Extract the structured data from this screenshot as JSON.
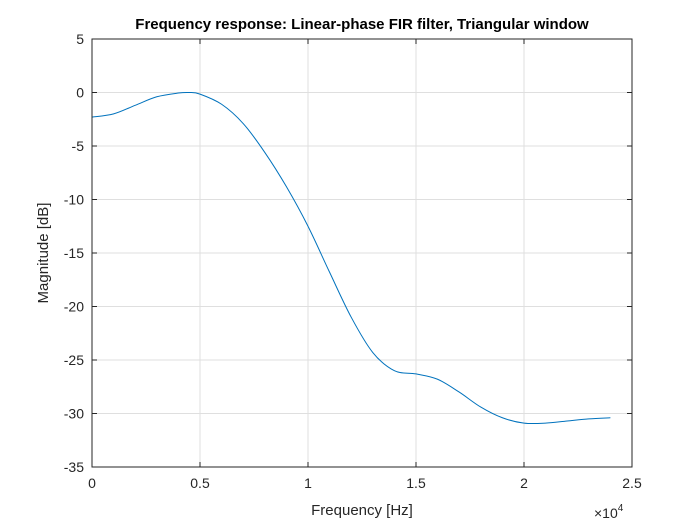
{
  "chart_data": {
    "type": "line",
    "title": "Frequency response: Linear-phase FIR filter, Triangular window",
    "xlabel": "Frequency [Hz]",
    "ylabel": "Magnitude [dB]",
    "xlim": [
      0,
      25000
    ],
    "ylim": [
      -35,
      5
    ],
    "x_tick_values": [
      0,
      5000,
      10000,
      15000,
      20000,
      25000
    ],
    "x_tick_labels": [
      "0",
      "0.5",
      "1",
      "1.5",
      "2",
      "2.5"
    ],
    "x_exponent_base": "×10",
    "x_exponent_power": "4",
    "y_tick_values": [
      5,
      0,
      -5,
      -10,
      -15,
      -20,
      -25,
      -30,
      -35
    ],
    "y_tick_labels": [
      "5",
      "0",
      "-5",
      "-10",
      "-15",
      "-20",
      "-25",
      "-30",
      "-35"
    ],
    "grid": true,
    "line_color": "#0072BD",
    "series": [
      {
        "x": [
          0,
          1000,
          2000,
          3000,
          4000,
          4500,
          5000,
          6000,
          7000,
          8000,
          9000,
          10000,
          11000,
          12000,
          13000,
          14000,
          15000,
          16000,
          17000,
          18000,
          19000,
          20000,
          21000,
          22000,
          23000,
          24000
        ],
        "y": [
          -2.3,
          -2.0,
          -1.2,
          -0.4,
          -0.05,
          0.0,
          -0.15,
          -1.1,
          -2.9,
          -5.6,
          -8.8,
          -12.5,
          -16.8,
          -21.0,
          -24.3,
          -26.0,
          -26.3,
          -26.8,
          -28.0,
          -29.4,
          -30.4,
          -30.9,
          -30.9,
          -30.7,
          -30.5,
          -30.4
        ]
      }
    ]
  }
}
